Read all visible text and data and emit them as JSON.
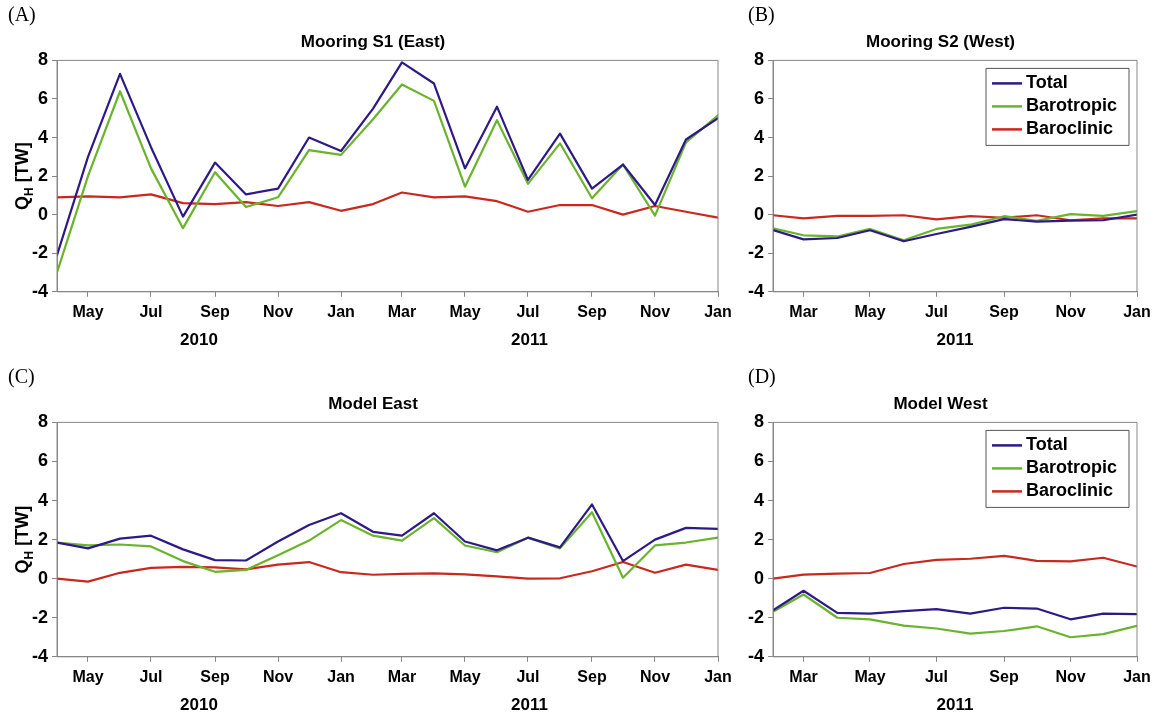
{
  "chart_data": [
    {
      "type": "line",
      "title": "Mooring S1 (East)",
      "ylabel": "Q$_{H}$ [TW]",
      "annotations": [
        "(A)",
        "2010",
        "2011"
      ],
      "x": [
        "2010-04",
        "2010-05",
        "2010-06",
        "2010-07",
        "2010-08",
        "2010-09",
        "2010-10",
        "2010-11",
        "2010-12",
        "2011-01",
        "2011-02",
        "2011-03",
        "2011-04",
        "2011-05",
        "2011-06",
        "2011-07",
        "2011-08",
        "2011-09",
        "2011-10",
        "2011-11",
        "2011-12",
        "2012-01"
      ],
      "series": [
        {
          "color": "#2e1a87",
          "values": [
            -2.1,
            3.0,
            7.3,
            3.5,
            -0.1,
            2.7,
            1.05,
            1.35,
            4.0,
            3.3,
            5.5,
            7.9,
            6.8,
            2.4,
            5.6,
            1.8,
            4.2,
            1.35,
            2.6,
            0.5,
            3.9,
            5.0
          ]
        },
        {
          "color": "#6ab42d",
          "values": [
            -3.0,
            2.0,
            6.4,
            2.4,
            -0.7,
            2.2,
            0.4,
            0.9,
            3.35,
            3.1,
            4.95,
            6.75,
            5.9,
            1.45,
            4.9,
            1.6,
            3.7,
            0.85,
            2.6,
            -0.05,
            3.75,
            5.15
          ]
        },
        {
          "color": "#c8281e",
          "values": [
            0.9,
            0.95,
            0.9,
            1.05,
            0.6,
            0.55,
            0.65,
            0.45,
            0.65,
            0.2,
            0.55,
            1.15,
            0.9,
            0.95,
            0.7,
            0.15,
            0.5,
            0.5,
            0.0,
            0.45,
            0.15,
            -0.15
          ]
        }
      ],
      "xlim": [
        "2010-04",
        "2012-01"
      ],
      "xticks": [
        {
          "value": "2010-05",
          "label": "May"
        },
        {
          "value": "2010-07",
          "label": "Jul"
        },
        {
          "value": "2010-09",
          "label": "Sep"
        },
        {
          "value": "2010-11",
          "label": "Nov"
        },
        {
          "value": "2011-01",
          "label": "Jan"
        },
        {
          "value": "2011-03",
          "label": "Mar"
        },
        {
          "value": "2011-05",
          "label": "May"
        },
        {
          "value": "2011-07",
          "label": "Jul"
        },
        {
          "value": "2011-09",
          "label": "Sep"
        },
        {
          "value": "2011-11",
          "label": "Nov"
        },
        {
          "value": "2012-01",
          "label": "Jan"
        }
      ],
      "ylim": [
        -4,
        8
      ],
      "yticks": [
        -4,
        -2,
        0,
        2,
        4,
        6,
        8
      ]
    },
    {
      "type": "line",
      "title": "Mooring S2 (West)",
      "legend": "top right",
      "annotations": [
        "(B)",
        "2011"
      ],
      "x": [
        "2011-02",
        "2011-03",
        "2011-04",
        "2011-05",
        "2011-06",
        "2011-07",
        "2011-08",
        "2011-09",
        "2011-10",
        "2011-11",
        "2011-12",
        "2012-01"
      ],
      "series": [
        {
          "name": "Total",
          "color": "#2e1a87",
          "values": [
            -0.8,
            -1.28,
            -1.21,
            -0.81,
            -1.38,
            -1.0,
            -0.63,
            -0.23,
            -0.36,
            -0.31,
            -0.29,
            0.0
          ]
        },
        {
          "name": "Barotropic",
          "color": "#6ab42d",
          "values": [
            -0.71,
            -1.07,
            -1.13,
            -0.74,
            -1.33,
            -0.74,
            -0.52,
            -0.08,
            -0.32,
            0.03,
            -0.06,
            0.18
          ]
        },
        {
          "name": "Baroclinic",
          "color": "#c8281e",
          "values": [
            -0.03,
            -0.19,
            -0.06,
            -0.06,
            -0.03,
            -0.24,
            -0.08,
            -0.16,
            -0.03,
            -0.29,
            -0.19,
            -0.19
          ]
        }
      ],
      "xlim": [
        "2011-02",
        "2012-01"
      ],
      "xticks": [
        {
          "value": "2011-03",
          "label": "Mar"
        },
        {
          "value": "2011-05",
          "label": "May"
        },
        {
          "value": "2011-07",
          "label": "Jul"
        },
        {
          "value": "2011-09",
          "label": "Sep"
        },
        {
          "value": "2011-11",
          "label": "Nov"
        },
        {
          "value": "2012-01",
          "label": "Jan"
        }
      ],
      "ylim": [
        -4,
        8
      ],
      "yticks": [
        -4,
        -2,
        0,
        2,
        4,
        6,
        8
      ]
    },
    {
      "type": "line",
      "title": "Model East",
      "ylabel": "Q$_{H}$ [TW]",
      "annotations": [
        "(C)",
        "2010",
        "2011"
      ],
      "x": [
        "2010-04",
        "2010-05",
        "2010-06",
        "2010-07",
        "2010-08",
        "2010-09",
        "2010-10",
        "2010-11",
        "2010-12",
        "2011-01",
        "2011-02",
        "2011-03",
        "2011-04",
        "2011-05",
        "2011-06",
        "2011-07",
        "2011-08",
        "2011-09",
        "2011-10",
        "2011-11",
        "2011-12",
        "2012-01"
      ],
      "series": [
        {
          "color": "#2e1a87",
          "values": [
            1.85,
            1.55,
            2.05,
            2.2,
            1.5,
            0.95,
            0.93,
            1.9,
            2.75,
            3.35,
            2.4,
            2.2,
            3.35,
            1.9,
            1.45,
            2.1,
            1.6,
            3.8,
            0.9,
            2.0,
            2.6,
            2.55
          ]
        },
        {
          "color": "#6ab42d",
          "values": [
            1.85,
            1.7,
            1.75,
            1.65,
            0.9,
            0.35,
            0.45,
            1.2,
            1.95,
            3.0,
            2.2,
            1.95,
            3.1,
            1.7,
            1.35,
            2.1,
            1.55,
            3.4,
            0.05,
            1.7,
            1.85,
            2.1
          ]
        },
        {
          "color": "#c8281e",
          "values": [
            0.0,
            -0.15,
            0.3,
            0.55,
            0.6,
            0.58,
            0.48,
            0.72,
            0.85,
            0.33,
            0.2,
            0.25,
            0.27,
            0.22,
            0.12,
            0.0,
            0.02,
            0.38,
            0.85,
            0.3,
            0.72,
            0.45
          ]
        }
      ],
      "xlim": [
        "2010-04",
        "2012-01"
      ],
      "xticks": [
        {
          "value": "2010-05",
          "label": "May"
        },
        {
          "value": "2010-07",
          "label": "Jul"
        },
        {
          "value": "2010-09",
          "label": "Sep"
        },
        {
          "value": "2010-11",
          "label": "Nov"
        },
        {
          "value": "2011-01",
          "label": "Jan"
        },
        {
          "value": "2011-03",
          "label": "Mar"
        },
        {
          "value": "2011-05",
          "label": "May"
        },
        {
          "value": "2011-07",
          "label": "Jul"
        },
        {
          "value": "2011-09",
          "label": "Sep"
        },
        {
          "value": "2011-11",
          "label": "Nov"
        },
        {
          "value": "2012-01",
          "label": "Jan"
        }
      ],
      "ylim": [
        -4,
        8
      ],
      "yticks": [
        -4,
        -2,
        0,
        2,
        4,
        6,
        8
      ]
    },
    {
      "type": "line",
      "title": "Model West",
      "legend": "top right",
      "annotations": [
        "(D)",
        "2011"
      ],
      "x": [
        "2011-02",
        "2011-03",
        "2011-04",
        "2011-05",
        "2011-06",
        "2011-07",
        "2011-08",
        "2011-09",
        "2011-10",
        "2011-11",
        "2011-12",
        "2012-01"
      ],
      "series": [
        {
          "name": "Total",
          "color": "#2e1a87",
          "values": [
            -1.62,
            -0.62,
            -1.75,
            -1.79,
            -1.66,
            -1.56,
            -1.79,
            -1.49,
            -1.53,
            -2.08,
            -1.79,
            -1.82
          ]
        },
        {
          "name": "Barotropic",
          "color": "#6ab42d",
          "values": [
            -1.7,
            -0.81,
            -2.0,
            -2.08,
            -2.4,
            -2.55,
            -2.81,
            -2.68,
            -2.44,
            -3.0,
            -2.84,
            -2.42
          ]
        },
        {
          "name": "Baroclinic",
          "color": "#c8281e",
          "values": [
            0.0,
            0.21,
            0.26,
            0.29,
            0.75,
            0.96,
            1.02,
            1.17,
            0.91,
            0.89,
            1.07,
            0.62
          ]
        }
      ],
      "xlim": [
        "2011-02",
        "2012-01"
      ],
      "xticks": [
        {
          "value": "2011-03",
          "label": "Mar"
        },
        {
          "value": "2011-05",
          "label": "May"
        },
        {
          "value": "2011-07",
          "label": "Jul"
        },
        {
          "value": "2011-09",
          "label": "Sep"
        },
        {
          "value": "2011-11",
          "label": "Nov"
        },
        {
          "value": "2012-01",
          "label": "Jan"
        }
      ],
      "ylim": [
        -4,
        8
      ],
      "yticks": [
        -4,
        -2,
        0,
        2,
        4,
        6,
        8
      ]
    }
  ]
}
